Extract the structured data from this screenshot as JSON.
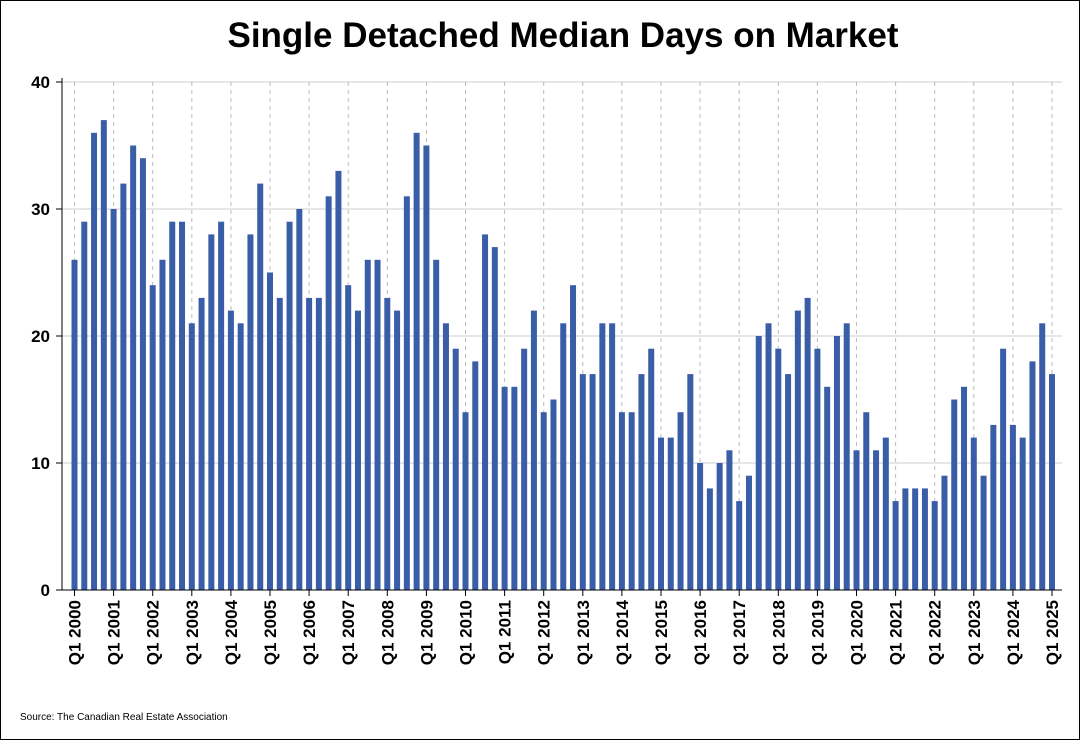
{
  "chart_data": {
    "type": "bar",
    "title": "Single Detached Median Days on Market",
    "source": "Source: The Canadian Real Estate Association",
    "xlabel": "",
    "ylabel": "",
    "ylim": [
      0,
      40
    ],
    "yticks": [
      0,
      10,
      20,
      30,
      40
    ],
    "grid": "horizontal solid, vertical dashed at each year",
    "bar_color": "#3A5DA8",
    "x_tick_labels": [
      "Q1 2000",
      "Q1 2001",
      "Q1 2002",
      "Q1 2003",
      "Q1 2004",
      "Q1 2005",
      "Q1 2006",
      "Q1 2007",
      "Q1 2008",
      "Q1 2009",
      "Q1 2010",
      "Q1 2011",
      "Q1 2012",
      "Q1 2013",
      "Q1 2014",
      "Q1 2015",
      "Q1 2016",
      "Q1 2017",
      "Q1 2018",
      "Q1 2019",
      "Q1 2020",
      "Q1 2021",
      "Q1 2022",
      "Q1 2023",
      "Q1 2024",
      "Q1 2025"
    ],
    "categories": [
      "Q1 2000",
      "Q2 2000",
      "Q3 2000",
      "Q4 2000",
      "Q1 2001",
      "Q2 2001",
      "Q3 2001",
      "Q4 2001",
      "Q1 2002",
      "Q2 2002",
      "Q3 2002",
      "Q4 2002",
      "Q1 2003",
      "Q2 2003",
      "Q3 2003",
      "Q4 2003",
      "Q1 2004",
      "Q2 2004",
      "Q3 2004",
      "Q4 2004",
      "Q1 2005",
      "Q2 2005",
      "Q3 2005",
      "Q4 2005",
      "Q1 2006",
      "Q2 2006",
      "Q3 2006",
      "Q4 2006",
      "Q1 2007",
      "Q2 2007",
      "Q3 2007",
      "Q4 2007",
      "Q1 2008",
      "Q2 2008",
      "Q3 2008",
      "Q4 2008",
      "Q1 2009",
      "Q2 2009",
      "Q3 2009",
      "Q4 2009",
      "Q1 2010",
      "Q2 2010",
      "Q3 2010",
      "Q4 2010",
      "Q1 2011",
      "Q2 2011",
      "Q3 2011",
      "Q4 2011",
      "Q1 2012",
      "Q2 2012",
      "Q3 2012",
      "Q4 2012",
      "Q1 2013",
      "Q2 2013",
      "Q3 2013",
      "Q4 2013",
      "Q1 2014",
      "Q2 2014",
      "Q3 2014",
      "Q4 2014",
      "Q1 2015",
      "Q2 2015",
      "Q3 2015",
      "Q4 2015",
      "Q1 2016",
      "Q2 2016",
      "Q3 2016",
      "Q4 2016",
      "Q1 2017",
      "Q2 2017",
      "Q3 2017",
      "Q4 2017",
      "Q1 2018",
      "Q2 2018",
      "Q3 2018",
      "Q4 2018",
      "Q1 2019",
      "Q2 2019",
      "Q3 2019",
      "Q4 2019",
      "Q1 2020",
      "Q2 2020",
      "Q3 2020",
      "Q4 2020",
      "Q1 2021",
      "Q2 2021",
      "Q3 2021",
      "Q4 2021",
      "Q1 2022",
      "Q2 2022",
      "Q3 2022",
      "Q4 2022",
      "Q1 2023",
      "Q2 2023",
      "Q3 2023",
      "Q4 2023",
      "Q1 2024",
      "Q2 2024",
      "Q3 2024",
      "Q4 2024",
      "Q1 2025"
    ],
    "values": [
      26,
      29,
      36,
      37,
      30,
      32,
      35,
      34,
      24,
      26,
      29,
      29,
      21,
      23,
      28,
      29,
      22,
      21,
      28,
      32,
      25,
      23,
      29,
      30,
      23,
      23,
      31,
      33,
      24,
      22,
      26,
      26,
      23,
      22,
      31,
      36,
      35,
      26,
      21,
      19,
      14,
      18,
      28,
      27,
      16,
      16,
      19,
      22,
      14,
      15,
      21,
      24,
      17,
      17,
      21,
      21,
      14,
      14,
      17,
      19,
      12,
      12,
      14,
      17,
      10,
      8,
      10,
      11,
      7,
      9,
      20,
      21,
      19,
      17,
      22,
      23,
      19,
      16,
      20,
      21,
      11,
      14,
      11,
      12,
      7,
      8,
      8,
      8,
      7,
      9,
      15,
      16,
      12,
      9,
      13,
      19,
      13,
      12,
      18,
      21,
      17
    ]
  }
}
